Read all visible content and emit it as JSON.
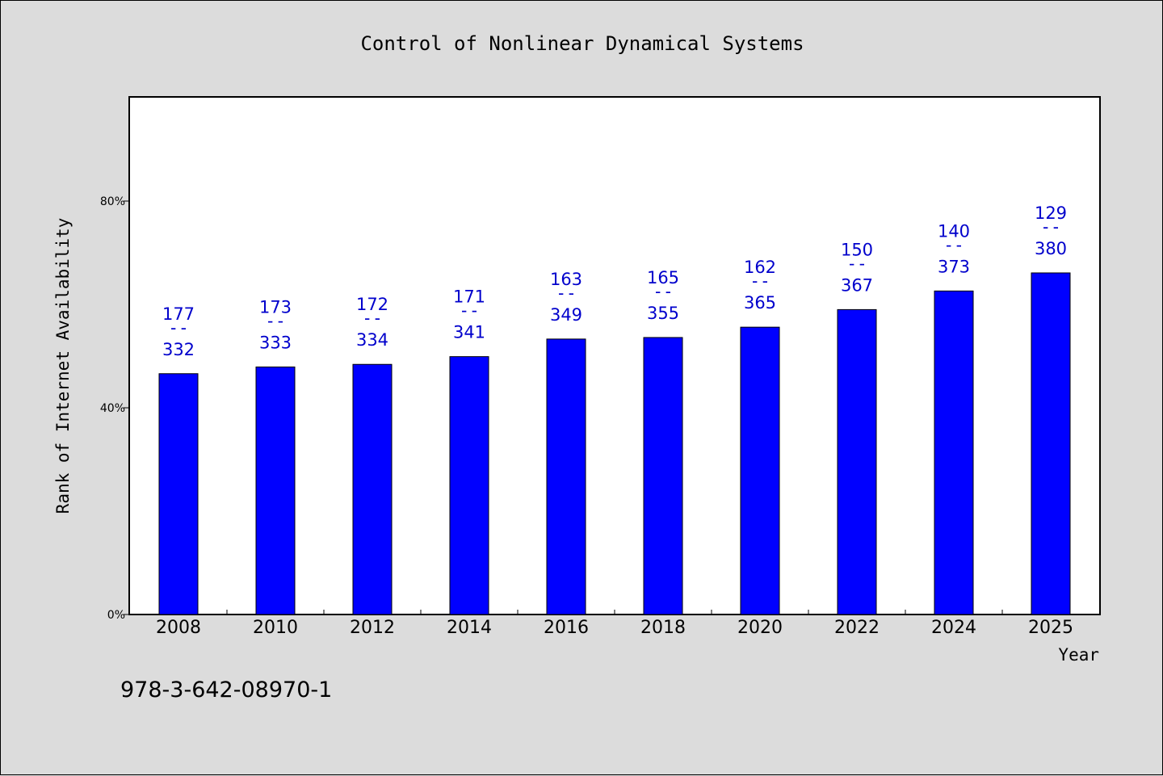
{
  "chart_data": {
    "type": "bar",
    "title": "Control of Nonlinear Dynamical Systems",
    "xlabel": "Year",
    "ylabel": "Rank of Internet Availability",
    "categories": [
      "2008",
      "2010",
      "2012",
      "2014",
      "2016",
      "2018",
      "2020",
      "2022",
      "2024",
      "2025"
    ],
    "values": [
      46.6,
      47.9,
      48.4,
      49.9,
      53.3,
      53.6,
      55.6,
      59.0,
      62.6,
      66.1
    ],
    "label_top": [
      "177",
      "173",
      "172",
      "171",
      "163",
      "165",
      "162",
      "150",
      "140",
      "129"
    ],
    "label_sep": "--",
    "label_bottom": [
      "332",
      "333",
      "334",
      "341",
      "349",
      "355",
      "365",
      "367",
      "373",
      "380"
    ],
    "ylim": [
      0,
      100
    ],
    "yticks": [
      0,
      40,
      80
    ],
    "ytick_labels": [
      "0%",
      "40%",
      "80%"
    ],
    "grid": false,
    "bar_color": "#0000ff",
    "label_color": "#0000cc"
  },
  "footer": {
    "isbn": "978-3-642-08970-1"
  }
}
